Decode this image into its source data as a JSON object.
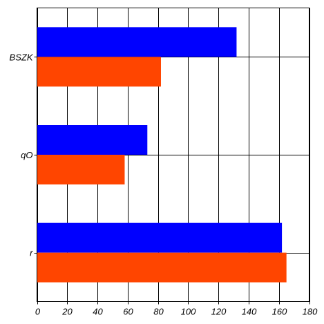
{
  "chart_data": {
    "type": "bar",
    "orientation": "horizontal",
    "categories": [
      "BSZK",
      "qO",
      "r"
    ],
    "series": [
      {
        "values": [
          132,
          73,
          162
        ],
        "color": "#0000ff"
      },
      {
        "values": [
          82,
          58,
          165
        ],
        "color": "#ff4500"
      }
    ],
    "title": "",
    "xlabel": "",
    "ylabel": "",
    "xlim": [
      0,
      180
    ],
    "xticks": [
      0,
      20,
      40,
      60,
      80,
      100,
      120,
      140,
      160,
      180
    ],
    "xtick_labels": [
      "0",
      "20",
      "40",
      "60",
      "80",
      "100",
      "120",
      "140",
      "160",
      "180"
    ],
    "grid": "on (vertical at x ticks, horizontal at category centers)",
    "legend": "none"
  }
}
